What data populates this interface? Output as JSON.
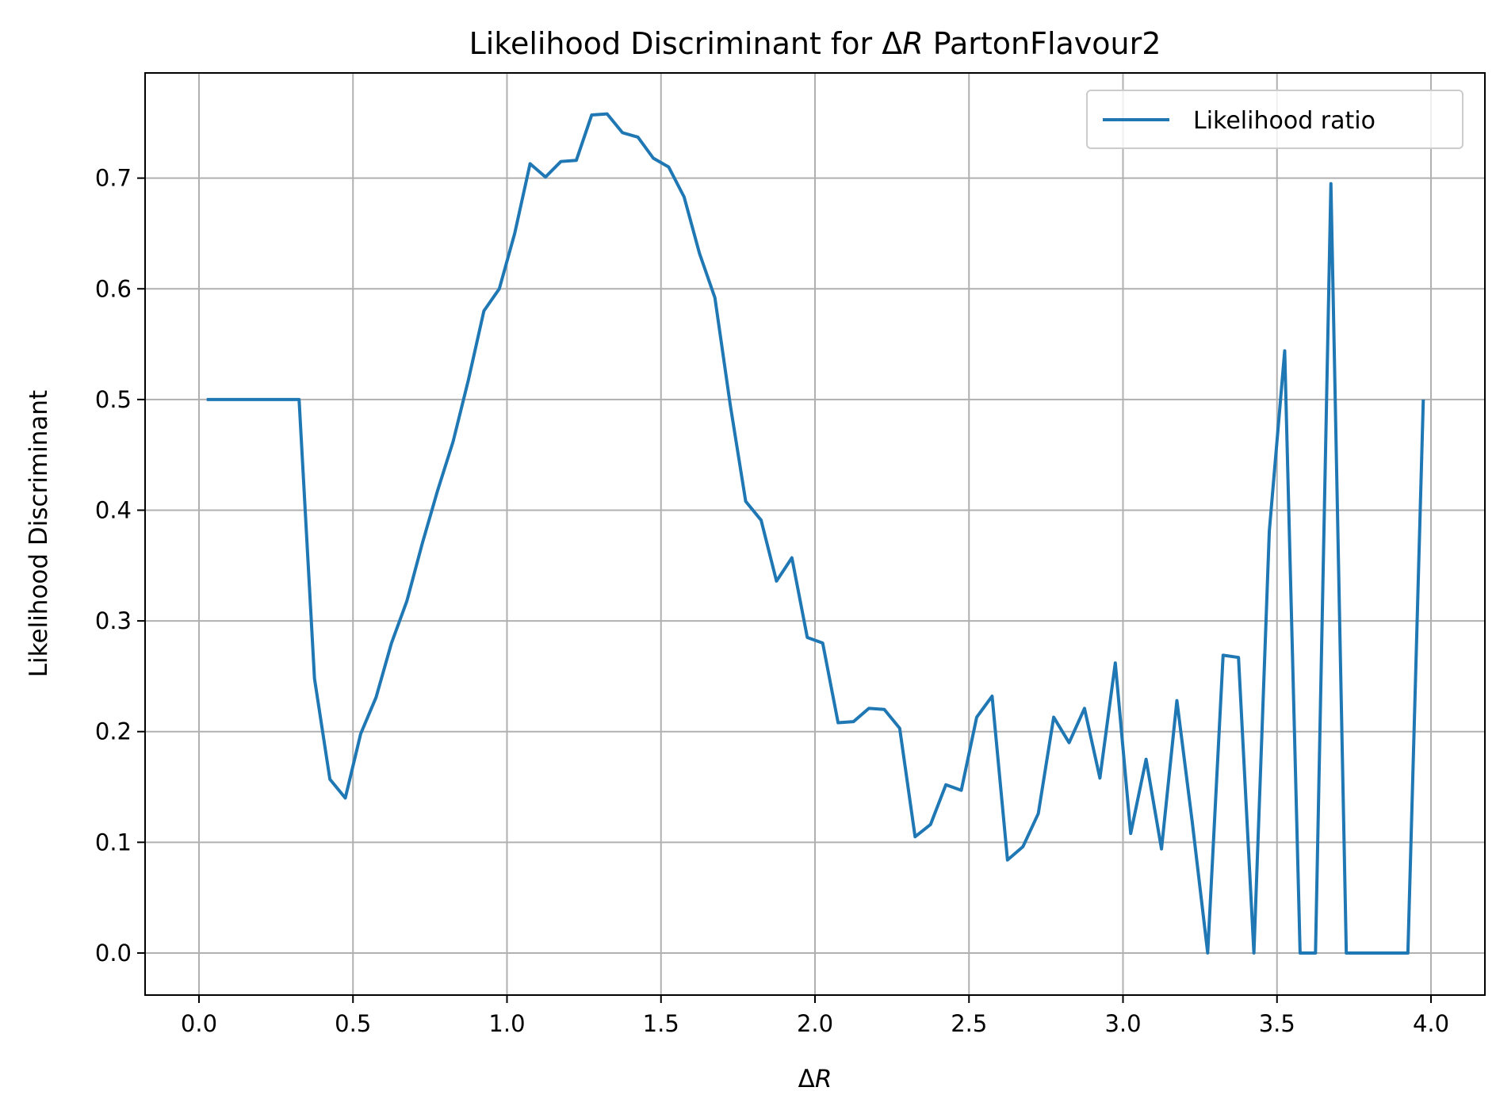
{
  "chart_data": {
    "type": "line",
    "title_prefix": "Likelihood Discriminant for ",
    "title_delta": "Δ",
    "title_var": "R",
    "title_suffix": " PartonFlavour2",
    "xlabel_delta": "Δ",
    "xlabel_var": "R",
    "ylabel": "Likelihood Discriminant",
    "xlim": [
      -0.175,
      4.175
    ],
    "ylim": [
      -0.038,
      0.795
    ],
    "xticks": [
      "0.0",
      "0.5",
      "1.0",
      "1.5",
      "2.0",
      "2.5",
      "3.0",
      "3.5",
      "4.0"
    ],
    "yticks": [
      "0.0",
      "0.1",
      "0.2",
      "0.3",
      "0.4",
      "0.5",
      "0.6",
      "0.7"
    ],
    "grid": true,
    "legend_position": "top-right",
    "line_color": "#1f77b4",
    "series": [
      {
        "name": "Likelihood ratio",
        "x": [
          0.025,
          0.075,
          0.125,
          0.175,
          0.225,
          0.275,
          0.325,
          0.375,
          0.425,
          0.475,
          0.525,
          0.575,
          0.625,
          0.675,
          0.725,
          0.775,
          0.825,
          0.875,
          0.925,
          0.975,
          1.025,
          1.075,
          1.125,
          1.175,
          1.225,
          1.275,
          1.325,
          1.375,
          1.425,
          1.475,
          1.525,
          1.575,
          1.625,
          1.675,
          1.725,
          1.775,
          1.825,
          1.875,
          1.925,
          1.975,
          2.025,
          2.075,
          2.125,
          2.175,
          2.225,
          2.275,
          2.325,
          2.375,
          2.425,
          2.475,
          2.525,
          2.575,
          2.625,
          2.675,
          2.725,
          2.775,
          2.825,
          2.875,
          2.925,
          2.975,
          3.025,
          3.075,
          3.125,
          3.175,
          3.225,
          3.275,
          3.325,
          3.375,
          3.425,
          3.475,
          3.525,
          3.575,
          3.625,
          3.675,
          3.725,
          3.775,
          3.825,
          3.875,
          3.925,
          3.975
        ],
        "y": [
          0.5,
          0.5,
          0.5,
          0.5,
          0.5,
          0.5,
          0.5,
          0.248,
          0.157,
          0.14,
          0.198,
          0.231,
          0.28,
          0.318,
          0.37,
          0.418,
          0.462,
          0.518,
          0.58,
          0.6,
          0.65,
          0.713,
          0.701,
          0.715,
          0.716,
          0.757,
          0.758,
          0.741,
          0.737,
          0.718,
          0.71,
          0.683,
          0.632,
          0.592,
          0.495,
          0.408,
          0.391,
          0.336,
          0.357,
          0.285,
          0.28,
          0.208,
          0.209,
          0.221,
          0.22,
          0.203,
          0.105,
          0.116,
          0.152,
          0.147,
          0.213,
          0.232,
          0.084,
          0.096,
          0.126,
          0.213,
          0.19,
          0.221,
          0.158,
          0.262,
          0.108,
          0.175,
          0.094,
          0.228,
          0.118,
          0.0,
          0.269,
          0.267,
          0.0,
          0.381,
          0.544,
          0.0,
          0.0,
          0.695,
          0.0,
          0.0,
          0.0,
          0.0,
          0.0,
          0.5
        ]
      }
    ]
  }
}
